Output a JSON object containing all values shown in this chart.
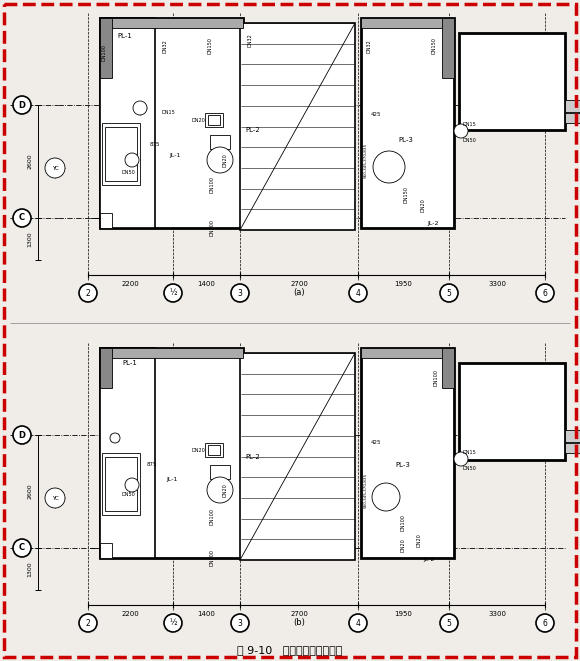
{
  "title": "图 9-10   某住宅给排水平面图",
  "bg": "#f5f5f0",
  "border_color": "#cc0000",
  "panel_a_label": "(a)",
  "panel_b_label": "(b)",
  "col_labels": [
    "2",
    "½",
    "3",
    "4",
    "5",
    "6"
  ],
  "dim_spans": [
    "2200",
    "1400",
    "2700",
    "1950",
    "3300"
  ],
  "left_dims": [
    "2600",
    "1300"
  ]
}
